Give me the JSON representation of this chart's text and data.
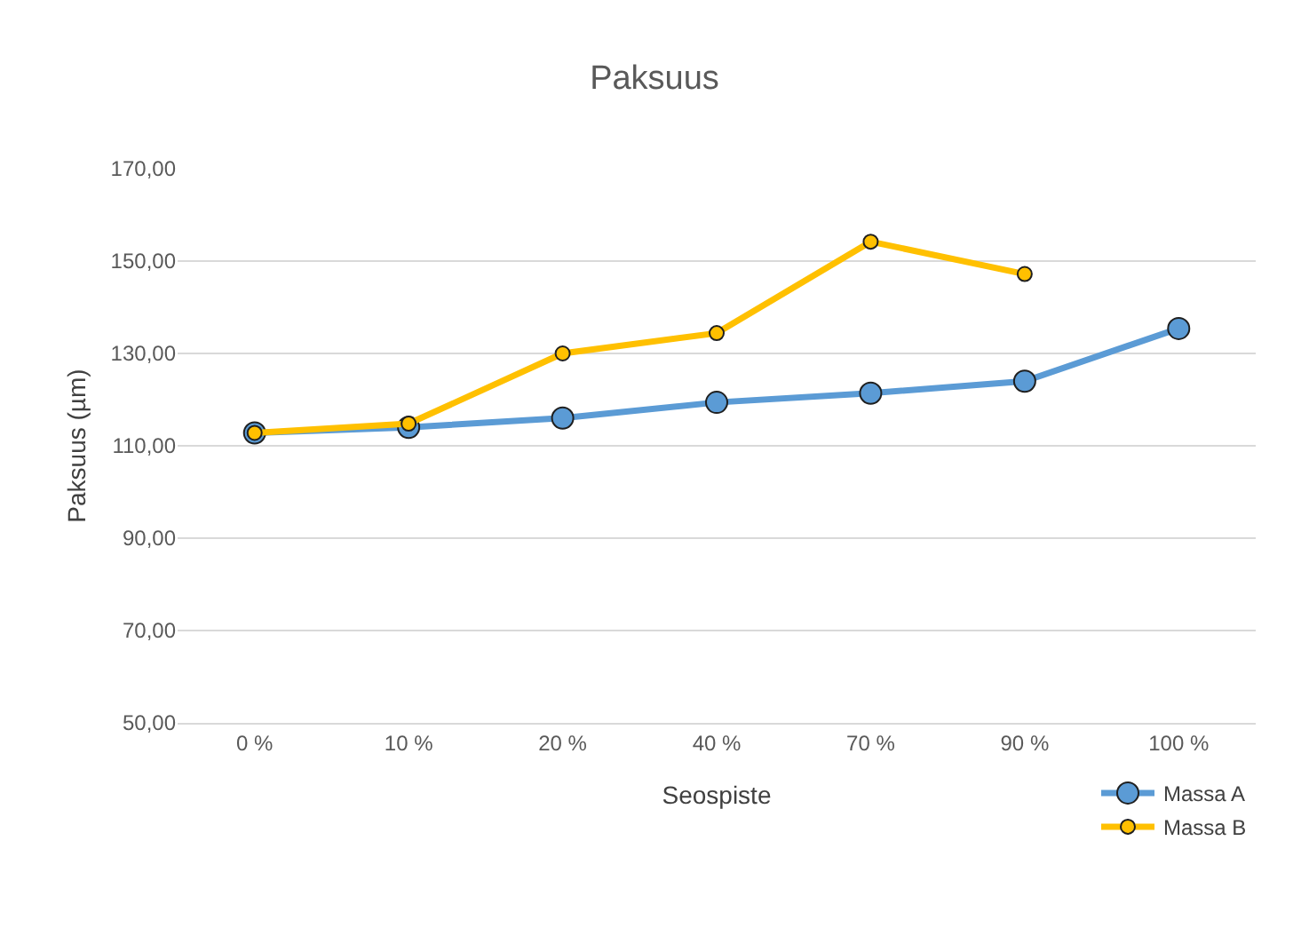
{
  "chart_data": {
    "type": "line",
    "title": "Paksuus",
    "xlabel": "Seospiste",
    "ylabel": "Paksuus (µm)",
    "categories": [
      "0 %",
      "10 %",
      "20 %",
      "40 %",
      "70 %",
      "90 %",
      "100 %"
    ],
    "series": [
      {
        "name": "Massa A",
        "color": "#5b9bd5",
        "values": [
          112.8,
          114,
          116,
          119.4,
          121.4,
          124,
          135.4
        ]
      },
      {
        "name": "Massa B",
        "color": "#ffc000",
        "values": [
          112.8,
          114.8,
          130,
          134.4,
          154.2,
          147.2,
          null
        ]
      }
    ],
    "ylim": [
      50,
      170
    ],
    "yticks": [
      {
        "value": 50,
        "label": "50,00"
      },
      {
        "value": 70,
        "label": "70,00"
      },
      {
        "value": 90,
        "label": "90,00"
      },
      {
        "value": 110,
        "label": "110,00"
      },
      {
        "value": 130,
        "label": "130,00"
      },
      {
        "value": 150,
        "label": "150,00"
      },
      {
        "value": 170,
        "label": "170,00"
      }
    ],
    "grid": "y",
    "legend": "bottom right",
    "marker": "circle",
    "line_style": "solid"
  }
}
